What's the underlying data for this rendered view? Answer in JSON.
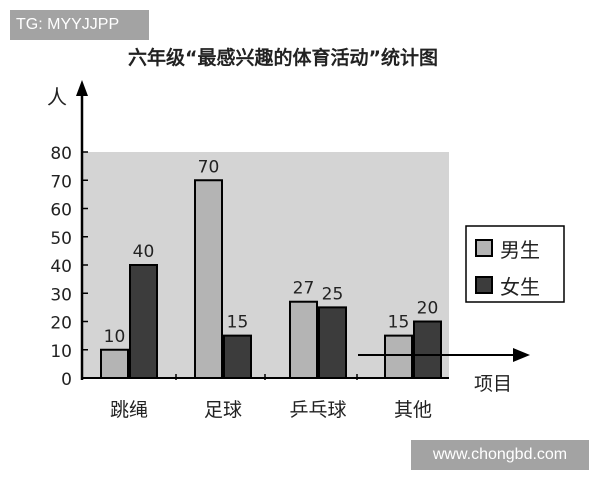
{
  "watermark_top": "TG: MYYJJPP",
  "watermark_bottom": "www.chongbd.com",
  "chart_data": {
    "type": "bar",
    "title": "六年级“最感兴趣的体育活动”统计图",
    "xlabel": "项目",
    "ylabel": "人",
    "ylim": [
      0,
      80
    ],
    "yticks": [
      0,
      10,
      20,
      30,
      40,
      50,
      60,
      70,
      80
    ],
    "categories": [
      "跳绳",
      "足球",
      "乒乓球",
      "其他"
    ],
    "series": [
      {
        "name": "男生",
        "values": [
          10,
          70,
          27,
          15
        ],
        "color": "#b4b4b4"
      },
      {
        "name": "女生",
        "values": [
          40,
          15,
          25,
          20
        ],
        "color": "#3c3c3c"
      }
    ],
    "legend": "right",
    "plot_background": "#d4d4d4",
    "grid": false
  }
}
